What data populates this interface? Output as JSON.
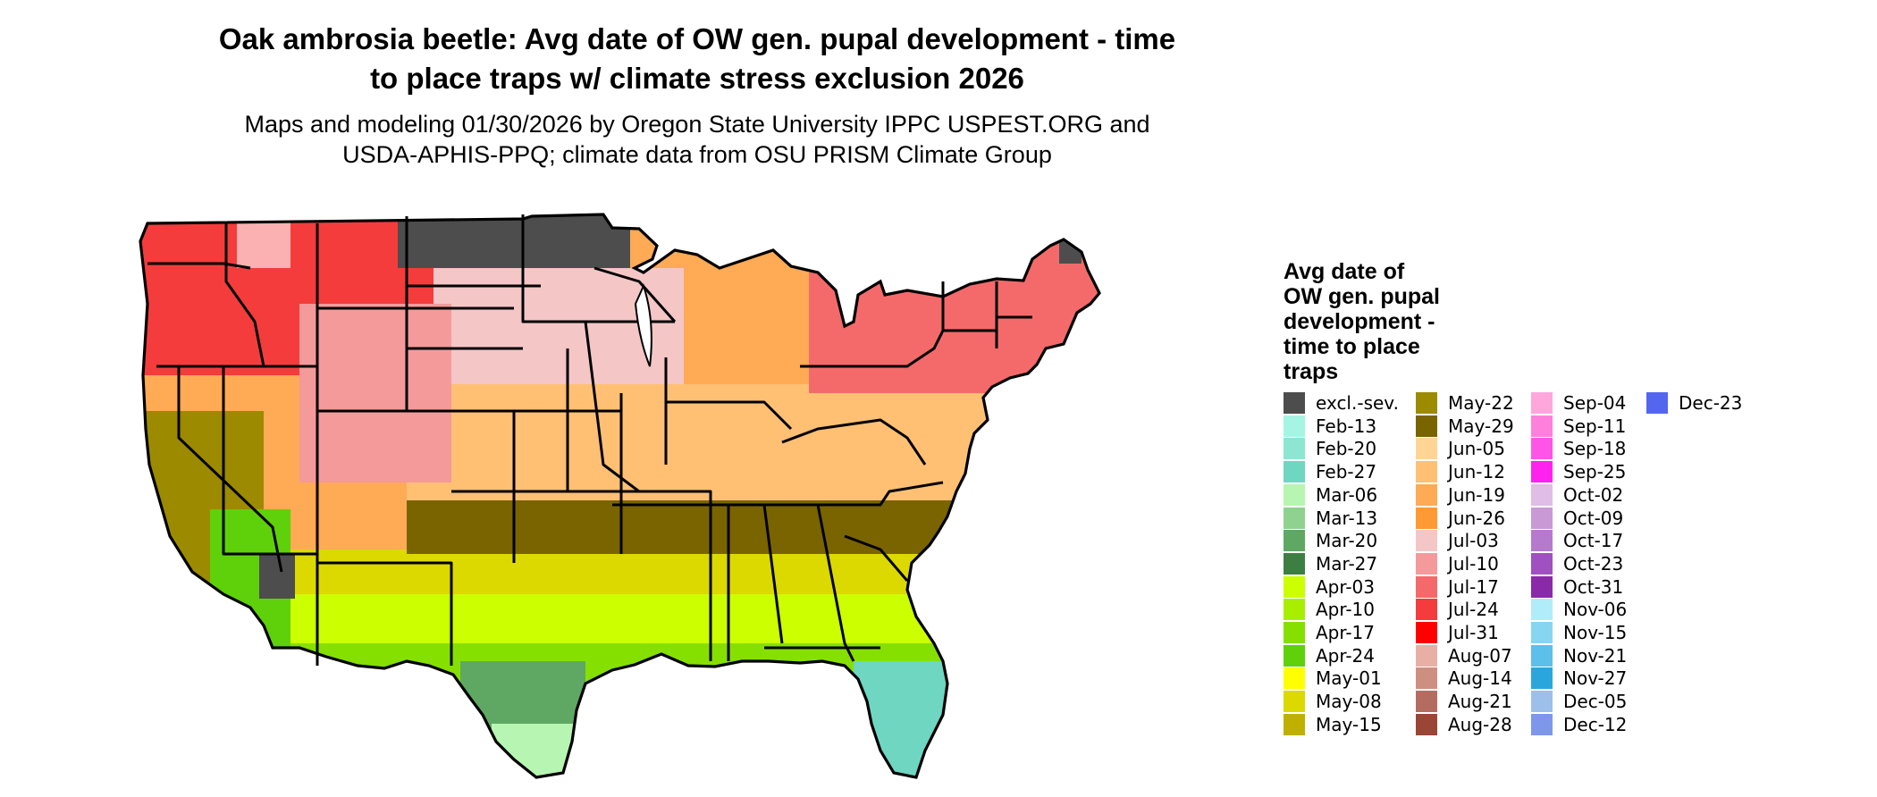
{
  "title": "Oak ambrosia beetle: Avg date of OW gen. pupal development - time to place traps w/ climate stress exclusion 2026",
  "title_line1": "Oak ambrosia beetle: Avg date of OW gen. pupal development - time",
  "title_line2": "to place traps w/ climate stress exclusion 2026",
  "subtitle_line1": "Maps and modeling 01/30/2026 by Oregon State University IPPC USPEST.ORG and",
  "subtitle_line2": "USDA-APHIS-PPQ; climate data from OSU PRISM Climate Group",
  "legend": {
    "title": "Avg date of OW gen. pupal development - time to place traps",
    "title_lines": [
      "Avg date of",
      "OW gen. pupal",
      "development -",
      "time to place",
      "traps"
    ],
    "items": [
      {
        "label": "excl.-sev.",
        "color": "#4d4d4d"
      },
      {
        "label": "Feb-13",
        "color": "#a6f5e4"
      },
      {
        "label": "Feb-20",
        "color": "#8ce6d2"
      },
      {
        "label": "Feb-27",
        "color": "#6fd6c2"
      },
      {
        "label": "Mar-06",
        "color": "#b7f5b3"
      },
      {
        "label": "Mar-13",
        "color": "#8fd28f"
      },
      {
        "label": "Mar-20",
        "color": "#5fa863"
      },
      {
        "label": "Mar-27",
        "color": "#3d7f43"
      },
      {
        "label": "Apr-03",
        "color": "#ccff00"
      },
      {
        "label": "Apr-10",
        "color": "#a8ee00"
      },
      {
        "label": "Apr-17",
        "color": "#85e000"
      },
      {
        "label": "Apr-24",
        "color": "#5ed10a"
      },
      {
        "label": "May-01",
        "color": "#ffff00"
      },
      {
        "label": "May-08",
        "color": "#dcd900"
      },
      {
        "label": "May-15",
        "color": "#bfb000"
      },
      {
        "label": "May-22",
        "color": "#9c8a00"
      },
      {
        "label": "May-29",
        "color": "#7a6400"
      },
      {
        "label": "Jun-05",
        "color": "#ffd595"
      },
      {
        "label": "Jun-12",
        "color": "#ffc074"
      },
      {
        "label": "Jun-19",
        "color": "#ffaa55"
      },
      {
        "label": "Jun-26",
        "color": "#ff9933"
      },
      {
        "label": "Jul-03",
        "color": "#f5c6c6"
      },
      {
        "label": "Jul-10",
        "color": "#f49a9a"
      },
      {
        "label": "Jul-17",
        "color": "#f46a6a"
      },
      {
        "label": "Jul-24",
        "color": "#f43c3c"
      },
      {
        "label": "Jul-31",
        "color": "#ff0000"
      },
      {
        "label": "Aug-07",
        "color": "#e8b0a4"
      },
      {
        "label": "Aug-14",
        "color": "#cf8f80"
      },
      {
        "label": "Aug-21",
        "color": "#b56c60"
      },
      {
        "label": "Aug-28",
        "color": "#9a4535"
      },
      {
        "label": "Sep-04",
        "color": "#ffa6dd"
      },
      {
        "label": "Sep-11",
        "color": "#ff80dc"
      },
      {
        "label": "Sep-18",
        "color": "#ff55e6"
      },
      {
        "label": "Sep-25",
        "color": "#ff22ee"
      },
      {
        "label": "Oct-02",
        "color": "#dfbde6"
      },
      {
        "label": "Oct-09",
        "color": "#c999d6"
      },
      {
        "label": "Oct-17",
        "color": "#b57acd"
      },
      {
        "label": "Oct-23",
        "color": "#a050c0"
      },
      {
        "label": "Oct-31",
        "color": "#8a2aa8"
      },
      {
        "label": "Nov-06",
        "color": "#b1ecfa"
      },
      {
        "label": "Nov-15",
        "color": "#86d6f2"
      },
      {
        "label": "Nov-21",
        "color": "#5cc0ea"
      },
      {
        "label": "Nov-27",
        "color": "#2aa6dc"
      },
      {
        "label": "Dec-05",
        "color": "#9dc0ea"
      },
      {
        "label": "Dec-12",
        "color": "#7d98ea"
      },
      {
        "label": "Dec-23",
        "color": "#5566ee"
      }
    ]
  },
  "map_colors": {
    "outline": "#000000",
    "excluded": "#4d4d4d",
    "mountain_white": "#ffffff"
  }
}
